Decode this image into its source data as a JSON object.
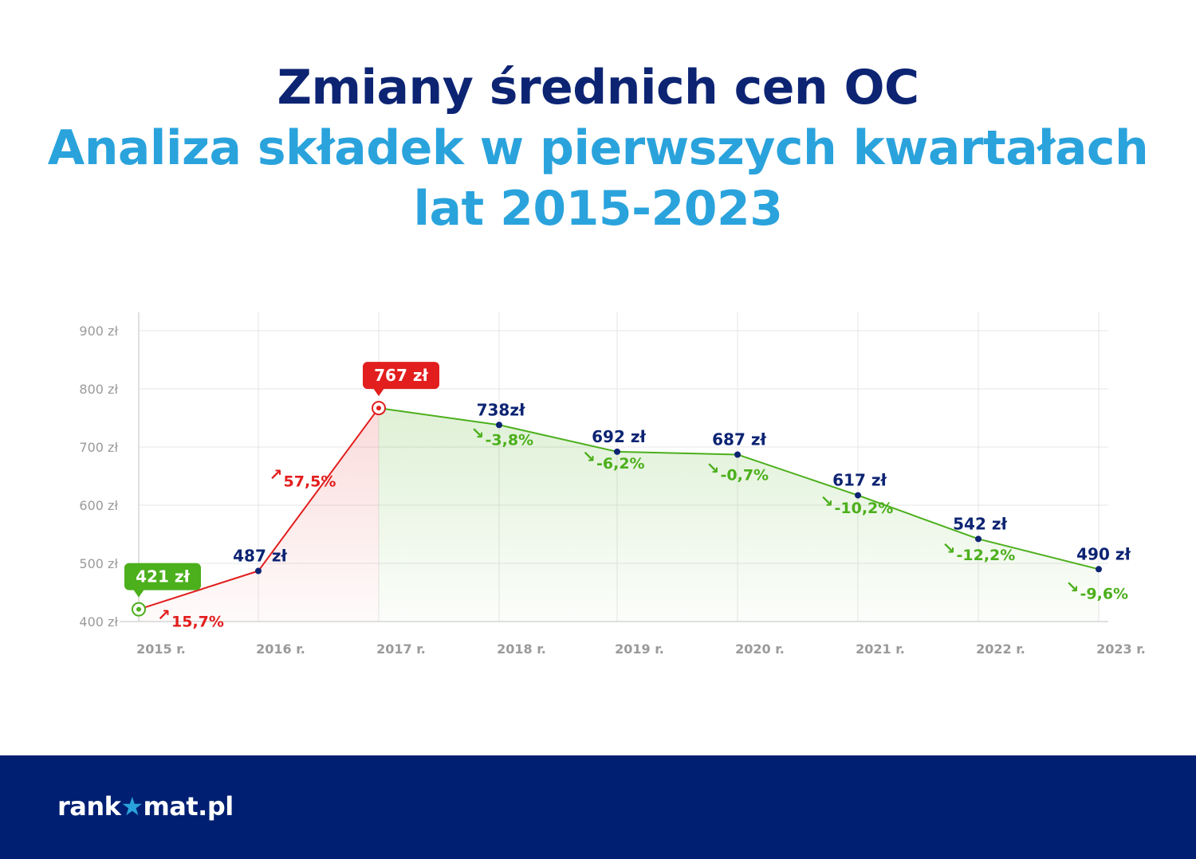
{
  "title": {
    "line1": "Zmiany średnich cen OC",
    "line2": "Analiza składek w pierwszych kwartałach",
    "line3": "lat 2015-2023"
  },
  "colors": {
    "navy": "#0d2473",
    "light_blue": "#2aa3dc",
    "rise": "#e21e1e",
    "fall": "#4caf1c",
    "axis_text": "#9a9a9a",
    "footer_bg": "#001f72"
  },
  "chart_data": {
    "type": "line",
    "categories": [
      "2015 r.",
      "2016 r.",
      "2017 r.",
      "2018 r.",
      "2019 r.",
      "2020 r.",
      "2021 r.",
      "2022 r.",
      "2023 r."
    ],
    "values": [
      421,
      487,
      767,
      738,
      692,
      687,
      617,
      542,
      490
    ],
    "point_labels": [
      "421 zł",
      "487 zł",
      "767 zł",
      "738zł",
      "692 zł",
      "687 zł",
      "617 zł",
      "542 zł",
      "490 zł"
    ],
    "changes": [
      "15,7%",
      "57,5%",
      "-3,8%",
      "-6,2%",
      "-0,7%",
      "-10,2%",
      "-12,2%",
      "-9,6%"
    ],
    "change_direction": [
      "up",
      "up",
      "down",
      "down",
      "down",
      "down",
      "down",
      "down"
    ],
    "y_ticks": [
      400,
      500,
      600,
      700,
      800,
      900
    ],
    "y_tick_labels": [
      "400 zł",
      "500 zł",
      "600 zł",
      "700 zł",
      "800 zł",
      "900 zł"
    ],
    "ylim": [
      400,
      900
    ],
    "highlight_min": "421 zł",
    "highlight_max": "767 zł",
    "grid": true,
    "xlabel": "",
    "ylabel": ""
  },
  "footer": {
    "brand_before": "rank",
    "brand_star": "★",
    "brand_after": "mat.pl"
  }
}
